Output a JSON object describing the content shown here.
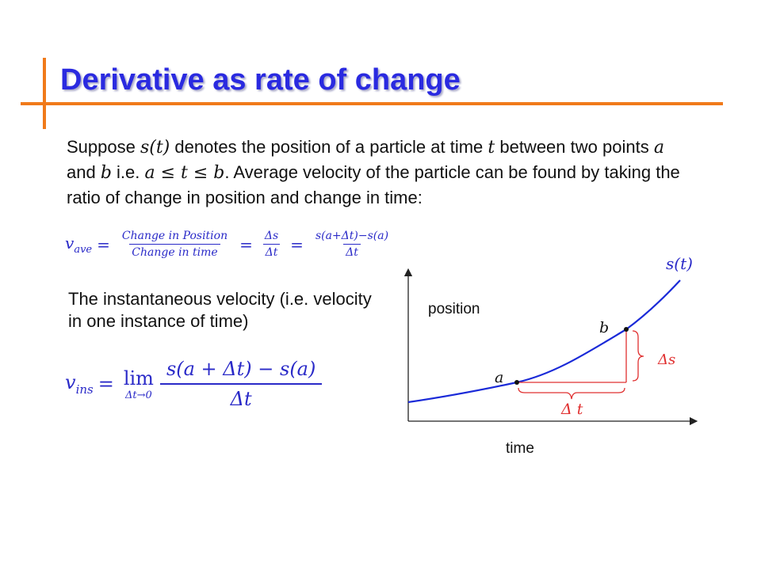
{
  "slide": {
    "title": "Derivative as rate of change",
    "intro": {
      "t1": "Suppose ",
      "m1": "s(t)",
      "t2": " denotes the position of a particle at time ",
      "m2": "t",
      "t3": " between two points ",
      "m3": "a",
      "t4": " and ",
      "m4": "b",
      "t5": " i.e. ",
      "m5": "a ≤ t ≤ b",
      "t6": ". Average velocity of the particle can be found by taking the ratio of change in position and change in time:"
    },
    "avg_formula": {
      "lhs": "v",
      "lhs_sub": "ave",
      "eq": "=",
      "f1_num": "Change in Position",
      "f1_den": "Change in time",
      "f2_num": "Δs",
      "f2_den": "Δt",
      "f3_num": "s(a+Δt)−s(a)",
      "f3_den": "Δt"
    },
    "instant_text": "The instantaneous velocity (i.e. velocity in one instance of time)",
    "inst_formula": {
      "lhs": "v",
      "lhs_sub": "ins",
      "eq": "=",
      "lim": "lim",
      "lim_sub": "Δt→0",
      "num": "s(a + Δt) − s(a)",
      "den": "Δt"
    },
    "graph": {
      "curve_label": "s(t)",
      "y_label": "position",
      "x_label": "time",
      "point_a": "a",
      "point_b": "b",
      "delta_t": "Δ t",
      "delta_s": "Δs",
      "colors": {
        "curve": "#1a2ad8",
        "annotation": "#e03030",
        "axis": "#222222"
      }
    }
  }
}
